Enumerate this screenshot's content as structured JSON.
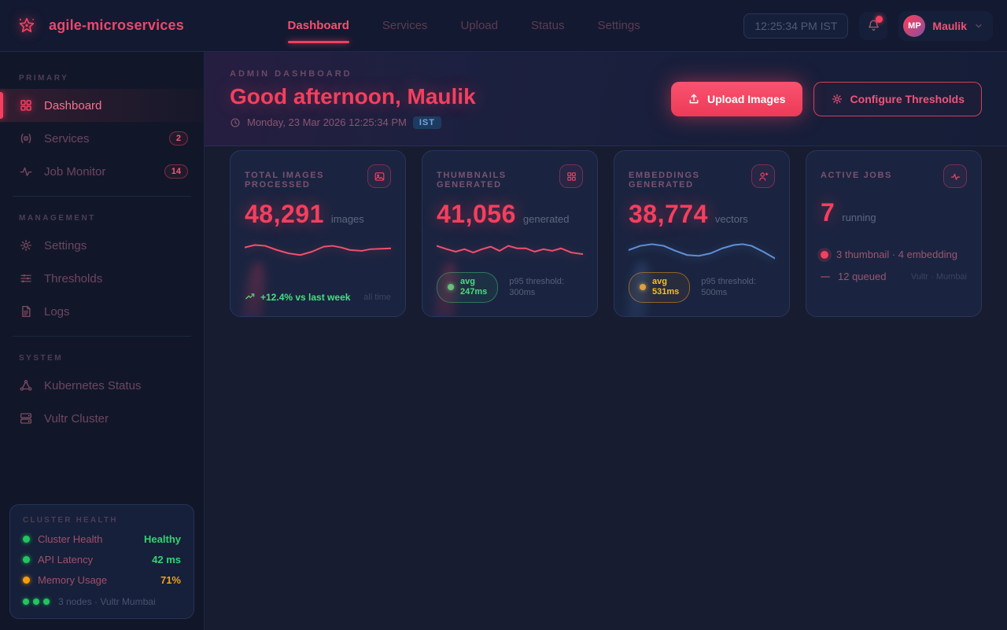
{
  "brand": {
    "name": "agile-microservices"
  },
  "navbar": {
    "items": [
      {
        "label": "Dashboard",
        "active": true
      },
      {
        "label": "Services",
        "active": false
      },
      {
        "label": "Upload",
        "active": false
      },
      {
        "label": "Status",
        "active": false
      },
      {
        "label": "Settings",
        "active": false
      }
    ],
    "clock": "12:25:34 PM IST",
    "user": {
      "initials": "MP",
      "name": "Maulik"
    }
  },
  "sidebar": {
    "sections": [
      {
        "label": "PRIMARY",
        "items": [
          {
            "label": "Dashboard"
          },
          {
            "label": "Services",
            "badge": "2"
          },
          {
            "label": "Job Monitor",
            "badge": "14"
          }
        ]
      },
      {
        "label": "MANAGEMENT",
        "items": [
          {
            "label": "Settings"
          },
          {
            "label": "Thresholds"
          },
          {
            "label": "Logs"
          }
        ]
      },
      {
        "label": "SYSTEM",
        "items": [
          {
            "label": "Kubernetes Status"
          },
          {
            "label": "Vultr Cluster"
          }
        ]
      }
    ],
    "cluster_health": {
      "title": "CLUSTER HEALTH",
      "rows": [
        {
          "label": "Cluster Health",
          "value": "Healthy",
          "status": "green"
        },
        {
          "label": "API Latency",
          "value": "42 ms",
          "status": "green"
        },
        {
          "label": "Memory Usage",
          "value": "71%",
          "status": "amber"
        }
      ],
      "footer": "3 nodes · Vultr Mumbai"
    }
  },
  "header": {
    "eyebrow": "ADMIN DASHBOARD",
    "greeting": "Good afternoon, Maulik",
    "date": "Monday, 23 Mar 2026 12:25:34 PM",
    "tz_badge": "IST",
    "upload_button": "Upload Images",
    "configure_button": "Configure Thresholds"
  },
  "cards": [
    {
      "title": "TOTAL IMAGES PROCESSED",
      "icon": "image-icon",
      "value": "48,291",
      "unit": "images",
      "trend": "+12.4% vs last week",
      "trend_note": "all time",
      "spark": {
        "color": "#f0506e",
        "points": [
          [
            0,
            11
          ],
          [
            7,
            8
          ],
          [
            14,
            9
          ],
          [
            22,
            14
          ],
          [
            30,
            18
          ],
          [
            38,
            20
          ],
          [
            46,
            16
          ],
          [
            54,
            10
          ],
          [
            60,
            9
          ],
          [
            66,
            11
          ],
          [
            72,
            14
          ],
          [
            80,
            15
          ],
          [
            86,
            13
          ],
          [
            100,
            12
          ]
        ]
      }
    },
    {
      "title": "THUMBNAILS GENERATED",
      "icon": "grid-icon",
      "value": "41,056",
      "unit": "generated",
      "pill": {
        "label": "avg",
        "value": "247ms"
      },
      "threshold_label": "p95 threshold:",
      "threshold_value": "300ms",
      "spark": {
        "color": "#f0506e",
        "points": [
          [
            0,
            9
          ],
          [
            7,
            13
          ],
          [
            13,
            16
          ],
          [
            19,
            13
          ],
          [
            25,
            17
          ],
          [
            31,
            13
          ],
          [
            37,
            10
          ],
          [
            43,
            15
          ],
          [
            49,
            9
          ],
          [
            55,
            12
          ],
          [
            61,
            12
          ],
          [
            67,
            16
          ],
          [
            73,
            13
          ],
          [
            79,
            15
          ],
          [
            85,
            12
          ],
          [
            92,
            17
          ],
          [
            100,
            19
          ]
        ]
      }
    },
    {
      "title": "EMBEDDINGS GENERATED",
      "icon": "user-plus-icon",
      "value": "38,774",
      "unit": "vectors",
      "pill": {
        "label": "avg",
        "value": "531ms"
      },
      "threshold_label": "p95 threshold:",
      "threshold_value": "500ms",
      "spark": {
        "color": "#6090d8",
        "points": [
          [
            0,
            14
          ],
          [
            8,
            9
          ],
          [
            16,
            7
          ],
          [
            24,
            9
          ],
          [
            32,
            15
          ],
          [
            40,
            20
          ],
          [
            48,
            21
          ],
          [
            56,
            18
          ],
          [
            64,
            12
          ],
          [
            72,
            8
          ],
          [
            78,
            7
          ],
          [
            84,
            9
          ],
          [
            92,
            16
          ],
          [
            100,
            24
          ]
        ]
      }
    },
    {
      "title": "ACTIVE JOBS",
      "icon": "activity-icon",
      "value": "7",
      "unit": "running",
      "breakdown": "3 thumbnail · 4 embedding",
      "queued": "12 queued",
      "location": "Vultr · Mumbai"
    }
  ]
}
